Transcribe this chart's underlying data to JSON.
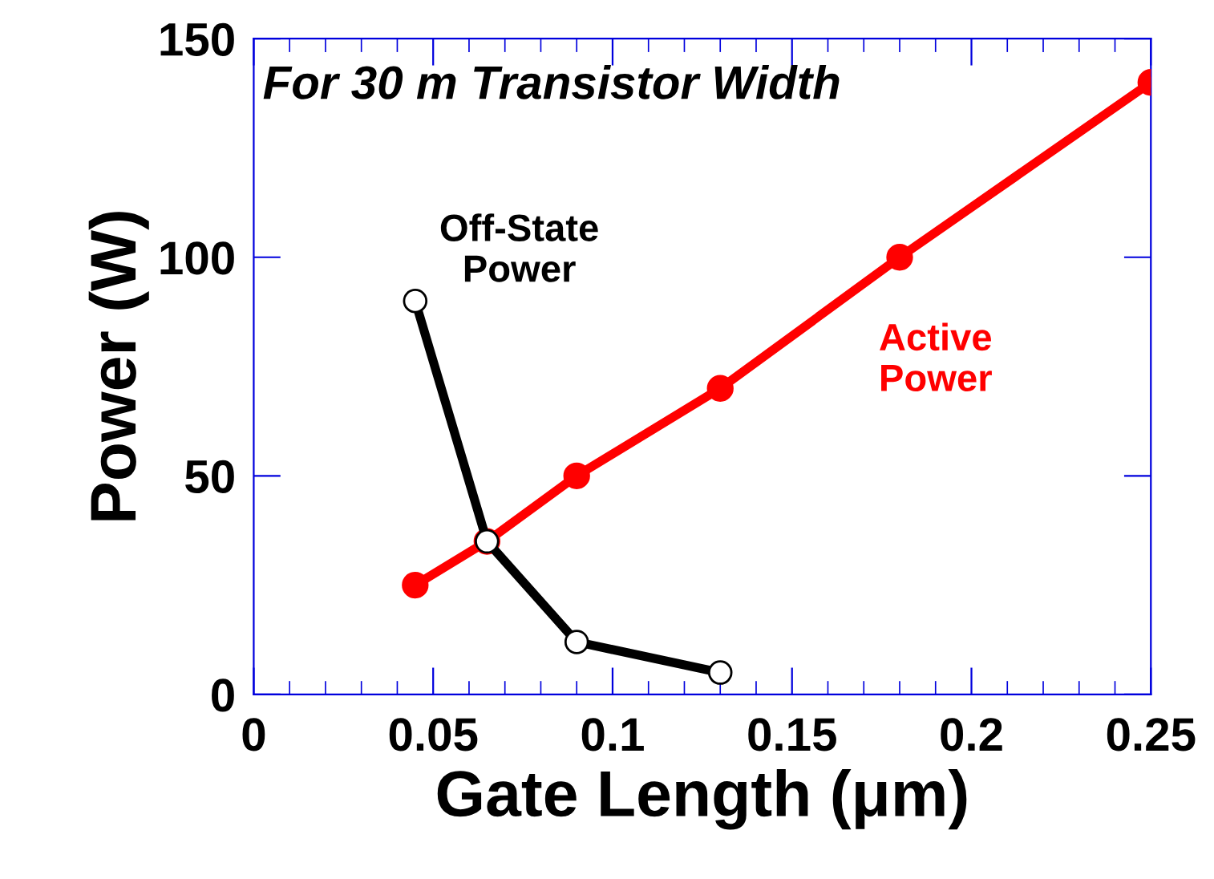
{
  "chart_data": {
    "type": "line",
    "title": "For 30 m Transistor Width",
    "xlabel": "Gate Length (μm)",
    "ylabel": "Power (W)",
    "xlim": [
      0,
      0.25
    ],
    "xticks": [
      0,
      0.05,
      0.1,
      0.15,
      0.2,
      0.25
    ],
    "ylim": [
      0,
      150
    ],
    "yticks": [
      0,
      50,
      100,
      150
    ],
    "grid": false,
    "legend": false,
    "marker": "circle",
    "line_style": "solid",
    "series": [
      {
        "name": "Active Power",
        "color": "#ff0000",
        "x": [
          0.045,
          0.065,
          0.09,
          0.13,
          0.18,
          0.25
        ],
        "values": [
          25,
          35,
          50,
          70,
          100,
          140
        ]
      },
      {
        "name": "Off-State Power",
        "color": "#000000",
        "x": [
          0.045,
          0.065,
          0.09,
          0.13
        ],
        "values": [
          90,
          35,
          12,
          5
        ]
      }
    ]
  }
}
